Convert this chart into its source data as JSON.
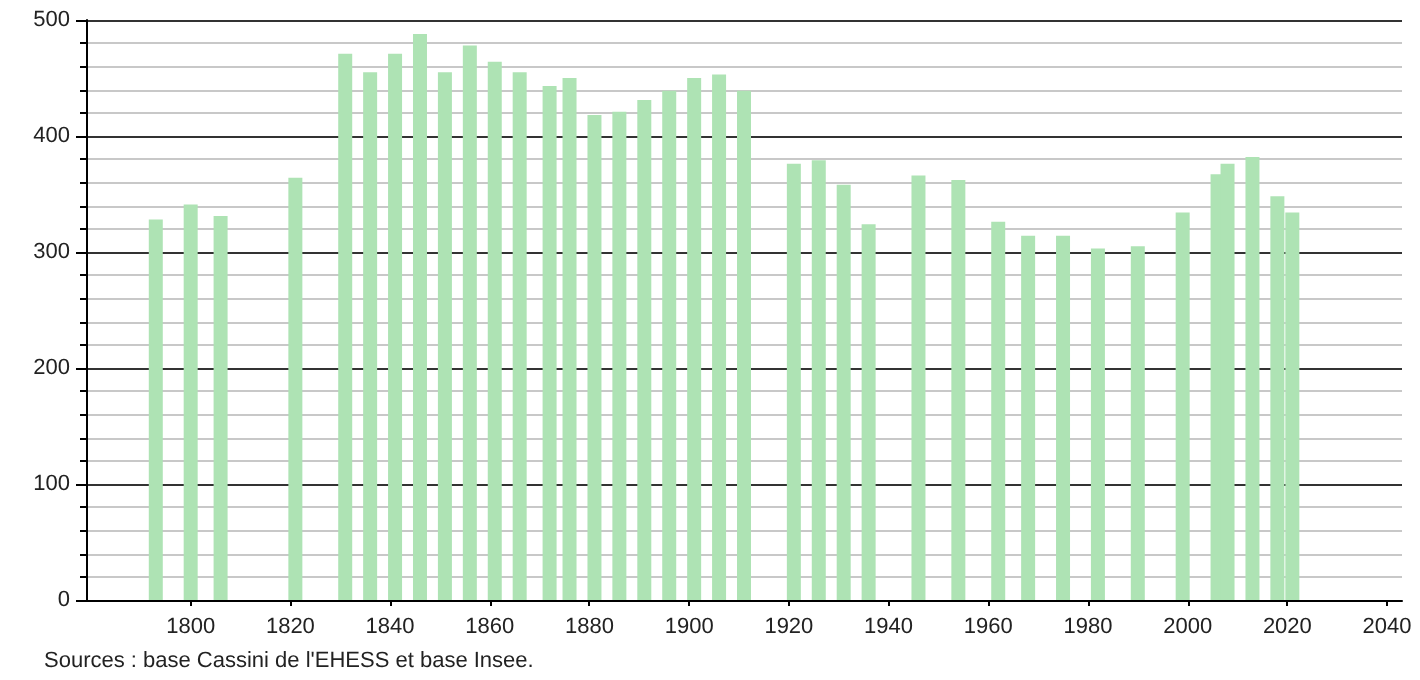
{
  "chart_data": {
    "type": "bar",
    "x": [
      1793,
      1800,
      1806,
      1821,
      1831,
      1836,
      1841,
      1846,
      1851,
      1856,
      1861,
      1866,
      1872,
      1876,
      1881,
      1886,
      1891,
      1896,
      1901,
      1906,
      1911,
      1921,
      1926,
      1931,
      1936,
      1946,
      1954,
      1962,
      1968,
      1975,
      1982,
      1990,
      1999,
      2006,
      2008,
      2013,
      2018,
      2021
    ],
    "values": [
      328,
      341,
      331,
      364,
      471,
      455,
      471,
      488,
      455,
      478,
      464,
      455,
      443,
      450,
      418,
      421,
      431,
      439,
      450,
      453,
      439,
      376,
      379,
      358,
      324,
      366,
      362,
      326,
      314,
      314,
      303,
      305,
      334,
      367,
      376,
      382,
      348,
      334
    ],
    "color": "#aee3b4",
    "xlim": [
      1779,
      2043
    ],
    "xticks": [
      1800,
      1820,
      1840,
      1860,
      1880,
      1900,
      1920,
      1940,
      1960,
      1980,
      2000,
      2020,
      2040
    ],
    "ylim": [
      0,
      500
    ],
    "yticks": [
      0,
      100,
      200,
      300,
      400,
      500
    ],
    "grid": "y",
    "annotations": [
      "Sources : base Cassini de l'EHESS et base Insee."
    ]
  }
}
